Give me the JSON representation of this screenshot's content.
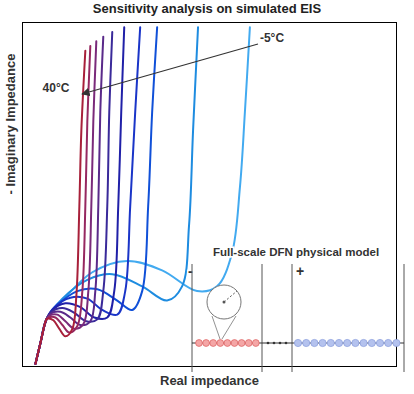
{
  "chart_data": {
    "type": "line",
    "title": "Sensitivity analysis on simulated EIS",
    "x_label": "Real impedance",
    "y_label": "- Imaginary Impedance",
    "xlim": [
      20,
      395
    ],
    "ylim": [
      -5,
      360
    ],
    "xticks": [],
    "yticks": [],
    "tick_labels": false,
    "grid": false,
    "inset": {
      "title": "Full-scale DFN physical model",
      "labels": [
        "-",
        "+"
      ]
    },
    "series": [
      {
        "name": "-5°C",
        "color": "#42aaf0",
        "x": [
          33,
          38,
          44,
          60,
          90,
          125,
          160,
          195,
          215,
          230,
          238,
          243,
          248
        ],
        "y": [
          -2,
          20,
          45,
          65,
          95,
          107,
          97,
          75,
          80,
          115,
          185,
          265,
          355
        ]
      },
      {
        "color": "#1e8ce0",
        "x": [
          33,
          38,
          44,
          60,
          85,
          110,
          140,
          165,
          180,
          187,
          191,
          196
        ],
        "y": [
          -2,
          20,
          45,
          67,
          87,
          93,
          80,
          65,
          80,
          145,
          245,
          355
        ]
      },
      {
        "color": "#1050d8",
        "x": [
          33,
          38,
          44,
          55,
          75,
          95,
          115,
          130,
          140,
          146,
          150,
          155
        ],
        "y": [
          -2,
          20,
          45,
          60,
          75,
          77,
          65,
          55,
          75,
          165,
          265,
          355
        ]
      },
      {
        "color": "#1a35c8",
        "x": [
          33,
          38,
          44,
          52,
          68,
          85,
          100,
          115,
          123,
          128,
          133,
          138
        ],
        "y": [
          -2,
          20,
          45,
          58,
          68,
          67,
          55,
          50,
          75,
          165,
          265,
          355
        ]
      },
      {
        "color": "#2020a8",
        "x": [
          33,
          38,
          44,
          50,
          63,
          78,
          92,
          105,
          112,
          116,
          119,
          122
        ],
        "y": [
          -2,
          20,
          45,
          55,
          62,
          58,
          47,
          47,
          75,
          165,
          265,
          355
        ]
      },
      {
        "color": "#3a2a9a",
        "x": [
          33,
          38,
          44,
          49,
          60,
          72,
          84,
          95,
          101,
          105,
          107,
          110
        ],
        "y": [
          -2,
          20,
          45,
          53,
          57,
          52,
          43,
          45,
          75,
          165,
          265,
          350
        ]
      },
      {
        "color": "#5a2a8a",
        "x": [
          33,
          38,
          44,
          48,
          58,
          68,
          78,
          88,
          93,
          96,
          98,
          101
        ],
        "y": [
          -2,
          20,
          45,
          51,
          53,
          47,
          39,
          43,
          75,
          165,
          265,
          345
        ]
      },
      {
        "color": "#7a2a7a",
        "x": [
          33,
          38,
          44,
          47,
          55,
          63,
          72,
          81,
          86,
          89,
          91,
          94
        ],
        "y": [
          -2,
          20,
          45,
          49,
          50,
          43,
          35,
          40,
          75,
          165,
          255,
          340
        ]
      },
      {
        "color": "#962860",
        "x": [
          33,
          38,
          44,
          46,
          53,
          60,
          67,
          75,
          80,
          83,
          85,
          88
        ],
        "y": [
          -2,
          20,
          45,
          47,
          47,
          39,
          31,
          38,
          75,
          165,
          255,
          335
        ]
      },
      {
        "name": "40°C",
        "color": "#a8203a",
        "x": [
          33,
          38,
          44,
          46,
          51,
          57,
          63,
          70,
          74,
          77,
          79,
          83
        ],
        "y": [
          -2,
          20,
          45,
          46,
          44,
          35,
          27,
          35,
          70,
          165,
          245,
          330
        ]
      }
    ]
  }
}
